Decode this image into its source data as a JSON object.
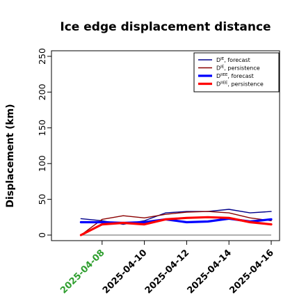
{
  "chart_data": {
    "type": "line",
    "title": "Ice edge displacement distance",
    "xlabel": "",
    "ylabel": "Displacement (km)",
    "x": [
      "2025-04-07",
      "2025-04-08",
      "2025-04-09",
      "2025-04-10",
      "2025-04-11",
      "2025-04-12",
      "2025-04-13",
      "2025-04-14",
      "2025-04-15",
      "2025-04-16"
    ],
    "x_tick_labels": [
      "2025-04-08",
      "2025-04-10",
      "2025-04-12",
      "2025-04-14",
      "2025-04-16"
    ],
    "x_tick_dates": [
      "2025-04-08",
      "2025-04-10",
      "2025-04-12",
      "2025-04-14",
      "2025-04-16"
    ],
    "highlighted_tick": "2025-04-08",
    "highlight_color": "#2e9e2e",
    "y_ticks": [
      0,
      50,
      100,
      150,
      200,
      250
    ],
    "ylim": [
      0,
      260
    ],
    "xlim": [
      "2025-04-06",
      "2025-04-16"
    ],
    "reference_line": 0,
    "legend_position": "top-right",
    "grid": false,
    "series": [
      {
        "name_main": "D",
        "name_sup": "IE",
        "name_suffix": ", forecast",
        "color": "#00008b",
        "width": 1.4,
        "values": [
          23,
          20,
          15,
          20,
          31,
          33,
          33,
          36,
          31,
          33
        ]
      },
      {
        "name_main": "D",
        "name_sup": "IE",
        "name_suffix": ", persistence",
        "color": "#8b0000",
        "width": 1.4,
        "values": [
          0,
          22,
          27,
          24,
          29,
          32,
          33,
          31,
          24,
          20
        ]
      },
      {
        "name_main": "D",
        "name_sup": "IIEE",
        "name_suffix": ", forecast",
        "color": "#0000ff",
        "width": 3.2,
        "values": [
          18,
          18,
          17,
          18,
          22,
          18,
          19,
          23,
          19,
          22
        ]
      },
      {
        "name_main": "D",
        "name_sup": "IIEE",
        "name_suffix": ", persistence",
        "color": "#ff0000",
        "width": 3.2,
        "values": [
          0,
          15,
          17,
          15,
          22,
          24,
          25,
          24,
          18,
          15
        ]
      }
    ]
  }
}
